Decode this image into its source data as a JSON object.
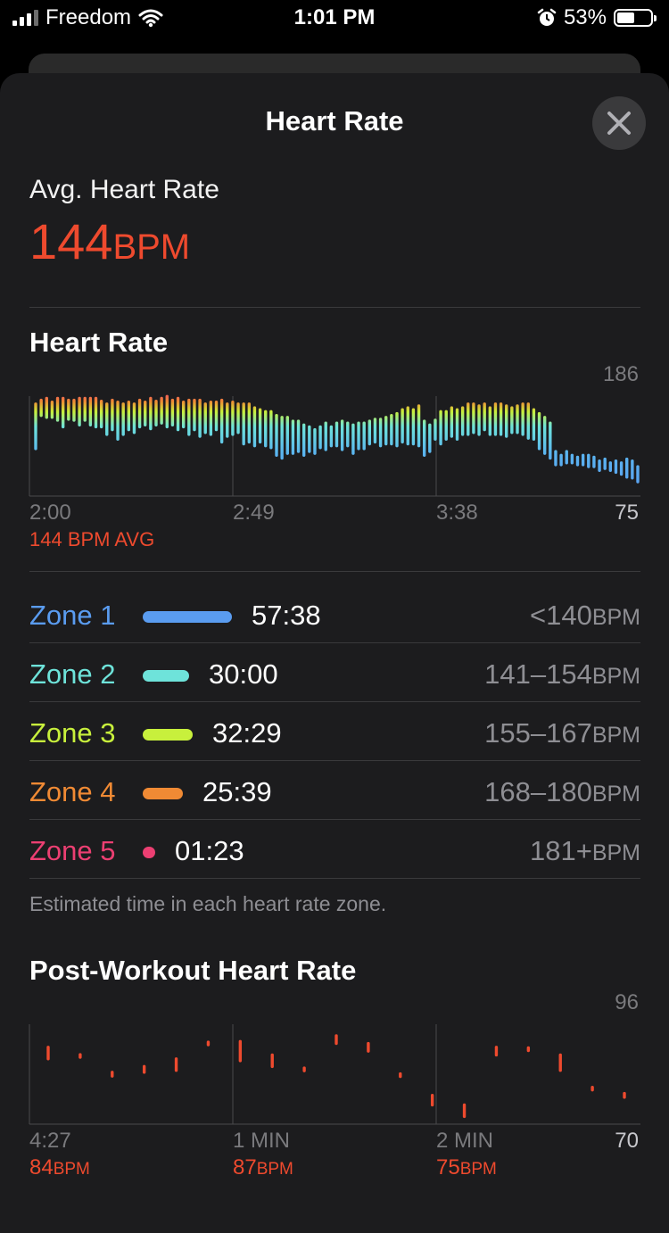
{
  "status": {
    "carrier": "Freedom",
    "time": "1:01 PM",
    "battery": "53%",
    "battery_level": 0.53,
    "icons": [
      "signal-icon",
      "wifi-icon",
      "alarm-icon",
      "battery-icon"
    ]
  },
  "sheet": {
    "title": "Heart Rate"
  },
  "avg": {
    "label": "Avg. Heart Rate",
    "value": "144",
    "unit": "BPM"
  },
  "heart_chart": {
    "title": "Heart Rate",
    "y_max": "186",
    "y_min": "75",
    "x_labels": [
      "2:00",
      "2:49",
      "3:38"
    ],
    "avg_note": "144 BPM AVG"
  },
  "zones": [
    {
      "name": "Zone 1",
      "time": "57:38",
      "range": "<140",
      "unit": "BPM",
      "color": "#5a9cf0",
      "fraction": 1.0
    },
    {
      "name": "Zone 2",
      "time": "30:00",
      "range": "141–154",
      "unit": "BPM",
      "color": "#6ee3da",
      "fraction": 0.52
    },
    {
      "name": "Zone 3",
      "time": "32:29",
      "range": "155–167",
      "unit": "BPM",
      "color": "#c8f03c",
      "fraction": 0.56
    },
    {
      "name": "Zone 4",
      "time": "25:39",
      "range": "168–180",
      "unit": "BPM",
      "color": "#f08a34",
      "fraction": 0.45
    },
    {
      "name": "Zone 5",
      "time": "01:23",
      "range": "181+",
      "unit": "BPM",
      "color": "#ec3f72",
      "fraction": 0.03
    }
  ],
  "zone_note": "Estimated time in each heart rate zone.",
  "post": {
    "title": "Post-Workout Heart Rate",
    "y_max": "96",
    "y_min": "70",
    "x_labels": [
      "4:27",
      "1 MIN",
      "2 MIN"
    ],
    "bpm_values": [
      "84",
      "87",
      "75"
    ],
    "bpm_unit": "BPM"
  },
  "chart_data": [
    {
      "type": "bar",
      "title": "Heart Rate",
      "ylim": [
        75,
        186
      ],
      "x_ticks": [
        "2:00",
        "2:49",
        "3:38"
      ],
      "annotation": "144 BPM AVG",
      "series": [
        {
          "values": [
            [
              125,
              172
            ],
            [
              160,
              176
            ],
            [
              158,
              178
            ],
            [
              158,
              174
            ],
            [
              155,
              178
            ],
            [
              148,
              178
            ],
            [
              156,
              176
            ],
            [
              155,
              176
            ],
            [
              150,
              178
            ],
            [
              155,
              178
            ],
            [
              150,
              178
            ],
            [
              148,
              178
            ],
            [
              148,
              175
            ],
            [
              140,
              172
            ],
            [
              145,
              176
            ],
            [
              135,
              174
            ],
            [
              140,
              172
            ],
            [
              145,
              174
            ],
            [
              142,
              172
            ],
            [
              148,
              176
            ],
            [
              150,
              174
            ],
            [
              146,
              178
            ],
            [
              150,
              175
            ],
            [
              152,
              178
            ],
            [
              148,
              180
            ],
            [
              150,
              176
            ],
            [
              145,
              178
            ],
            [
              148,
              174
            ],
            [
              140,
              176
            ],
            [
              145,
              176
            ],
            [
              138,
              176
            ],
            [
              142,
              172
            ],
            [
              140,
              174
            ],
            [
              145,
              174
            ],
            [
              132,
              176
            ],
            [
              138,
              172
            ],
            [
              140,
              174
            ],
            [
              142,
              172
            ],
            [
              130,
              172
            ],
            [
              132,
              172
            ],
            [
              128,
              168
            ],
            [
              132,
              166
            ],
            [
              128,
              164
            ],
            [
              126,
              164
            ],
            [
              118,
              160
            ],
            [
              115,
              158
            ],
            [
              120,
              158
            ],
            [
              120,
              154
            ],
            [
              122,
              154
            ],
            [
              118,
              150
            ],
            [
              122,
              148
            ],
            [
              120,
              145
            ],
            [
              126,
              148
            ],
            [
              124,
              152
            ],
            [
              128,
              148
            ],
            [
              128,
              152
            ],
            [
              124,
              154
            ],
            [
              128,
              152
            ],
            [
              120,
              150
            ],
            [
              125,
              152
            ],
            [
              125,
              152
            ],
            [
              130,
              154
            ],
            [
              132,
              156
            ],
            [
              128,
              156
            ],
            [
              130,
              158
            ],
            [
              130,
              160
            ],
            [
              128,
              162
            ],
            [
              132,
              166
            ],
            [
              130,
              168
            ],
            [
              130,
              166
            ],
            [
              128,
              170
            ],
            [
              118,
              154
            ],
            [
              122,
              150
            ],
            [
              135,
              155
            ],
            [
              130,
              164
            ],
            [
              135,
              164
            ],
            [
              138,
              168
            ],
            [
              135,
              166
            ],
            [
              140,
              168
            ],
            [
              140,
              172
            ],
            [
              142,
              172
            ],
            [
              140,
              170
            ],
            [
              145,
              172
            ],
            [
              140,
              168
            ],
            [
              140,
              172
            ],
            [
              140,
              172
            ],
            [
              138,
              170
            ],
            [
              142,
              168
            ],
            [
              142,
              170
            ],
            [
              140,
              172
            ],
            [
              136,
              172
            ],
            [
              135,
              166
            ],
            [
              125,
              162
            ],
            [
              120,
              158
            ],
            [
              115,
              152
            ],
            [
              108,
              122
            ],
            [
              108,
              118
            ],
            [
              110,
              122
            ],
            [
              110,
              118
            ],
            [
              108,
              116
            ],
            [
              108,
              118
            ],
            [
              106,
              118
            ],
            [
              106,
              116
            ],
            [
              102,
              112
            ],
            [
              104,
              114
            ],
            [
              102,
              110
            ],
            [
              100,
              112
            ],
            [
              98,
              110
            ],
            [
              95,
              114
            ],
            [
              94,
              112
            ],
            [
              90,
              106
            ]
          ]
        }
      ]
    },
    {
      "type": "scatter",
      "title": "Post-Workout Heart Rate",
      "ylim": [
        70,
        96
      ],
      "x_ticks": [
        "4:27",
        "1 MIN",
        "2 MIN"
      ],
      "x_values": [
        "84BPM",
        "87BPM",
        "75BPM"
      ],
      "series": [
        {
          "values": [
            [
              87,
              90
            ],
            [
              87.5,
              88
            ],
            [
              82.5,
              83.5
            ],
            [
              83.5,
              85
            ],
            [
              84,
              87
            ],
            [
              91,
              91
            ],
            [
              86.5,
              91.5
            ],
            [
              85,
              88
            ],
            [
              84,
              84.5
            ],
            [
              91,
              93
            ],
            [
              89,
              91
            ],
            [
              82.5,
              83
            ],
            [
              75,
              77.5
            ],
            [
              72,
              75
            ],
            [
              88,
              90
            ],
            [
              89.5,
              89.5
            ],
            [
              84,
              88
            ],
            [
              79,
              79.5
            ],
            [
              77,
              78
            ]
          ]
        }
      ]
    }
  ]
}
